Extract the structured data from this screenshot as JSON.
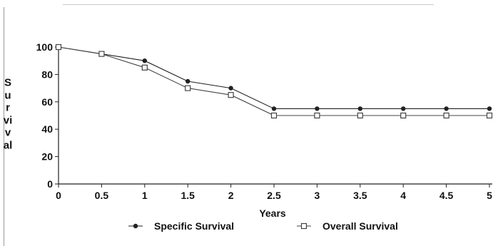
{
  "chart_data": {
    "type": "line",
    "xlabel": "Years",
    "ylabel": "Survival",
    "x": [
      0,
      0.5,
      1,
      1.5,
      2,
      2.5,
      3,
      3.5,
      4,
      4.5,
      5
    ],
    "x_tick_labels": [
      "0",
      "0.5",
      "1",
      "1.5",
      "2",
      "2.5",
      "3",
      "3.5",
      "4",
      "4.5",
      "5"
    ],
    "y_tick_labels": [
      "0",
      "20",
      "40",
      "60",
      "80",
      "100"
    ],
    "y_ticks": [
      0,
      20,
      40,
      60,
      80,
      100
    ],
    "xlim": [
      0,
      5
    ],
    "ylim": [
      0,
      100
    ],
    "grid": false,
    "legend_position": "bottom",
    "series": [
      {
        "name": "Specific Survival",
        "marker": "filled-circle",
        "color": "#222222",
        "values": [
          100,
          95,
          90,
          75,
          70,
          55,
          55,
          55,
          55,
          55,
          55
        ]
      },
      {
        "name": "Overall Survival",
        "marker": "open-square",
        "color": "#444444",
        "values": [
          100,
          95,
          85,
          70,
          65,
          50,
          50,
          50,
          50,
          50,
          50
        ]
      }
    ]
  }
}
